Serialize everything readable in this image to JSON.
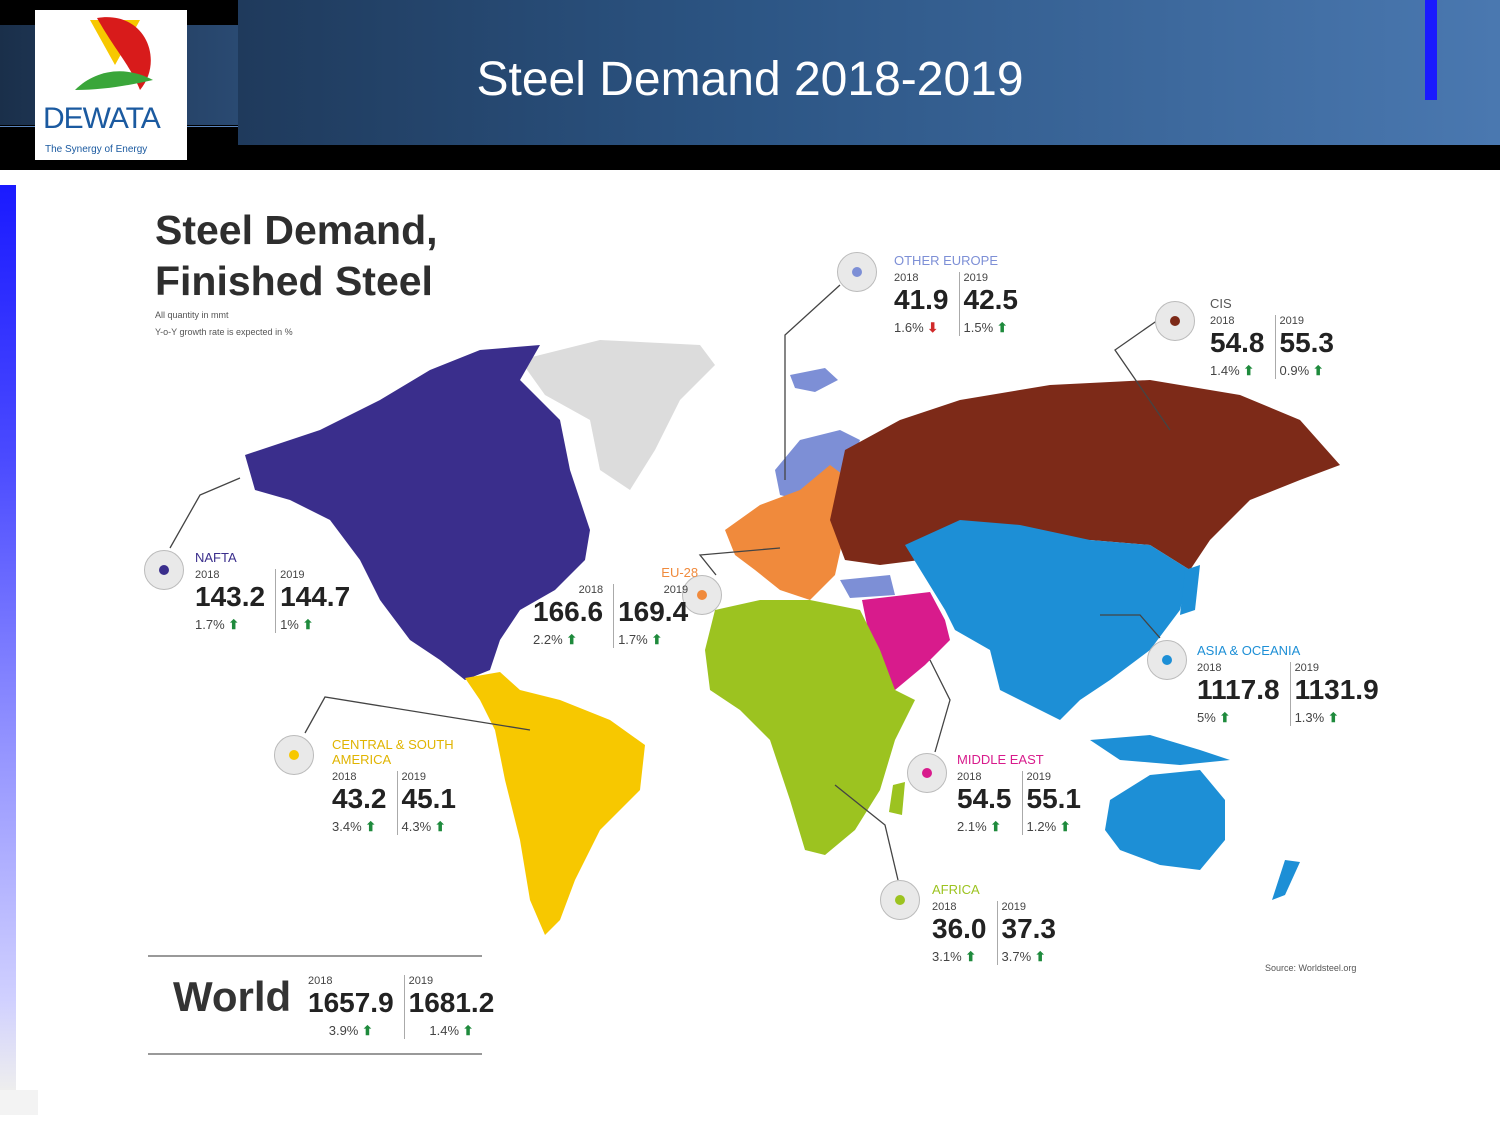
{
  "slide": {
    "title": "Steel Demand 2018-2019",
    "logo": {
      "name": "DEWATA",
      "tagline": "The Synergy of Energy"
    },
    "colors": {
      "accent": "#1a1aff",
      "header_band": "#2c5584"
    }
  },
  "infographic": {
    "title_line1": "Steel Demand,",
    "title_line2": "Finished Steel",
    "note_line1": "All quantity in mmt",
    "note_line2": "Y-o-Y growth rate is expected in %",
    "source": "Source: Worldsteel.org",
    "regions": [
      {
        "key": "nafta",
        "name": "NAFTA",
        "year1": "2018",
        "value1": "143.2",
        "pct1": "1.7%",
        "trend1": "up",
        "year2": "2019",
        "value2": "144.7",
        "pct2": "1%",
        "trend2": "up",
        "color": "#3a2e8c"
      },
      {
        "key": "eu28",
        "name": "EU-28",
        "year1": "2018",
        "value1": "166.6",
        "pct1": "2.2%",
        "trend1": "up",
        "year2": "2019",
        "value2": "169.4",
        "pct2": "1.7%",
        "trend2": "up",
        "color": "#f08a3c"
      },
      {
        "key": "other_europe",
        "name": "OTHER EUROPE",
        "year1": "2018",
        "value1": "41.9",
        "pct1": "1.6%",
        "trend1": "down",
        "year2": "2019",
        "value2": "42.5",
        "pct2": "1.5%",
        "trend2": "up",
        "color": "#7d8fd6"
      },
      {
        "key": "cis",
        "name": "CIS",
        "year1": "2018",
        "value1": "54.8",
        "pct1": "1.4%",
        "trend1": "up",
        "year2": "2019",
        "value2": "55.3",
        "pct2": "0.9%",
        "trend2": "up",
        "color": "#7d2a18"
      },
      {
        "key": "asia_oceania",
        "name": "ASIA & OCEANIA",
        "year1": "2018",
        "value1": "1117.8",
        "pct1": "5%",
        "trend1": "up",
        "year2": "2019",
        "value2": "1131.9",
        "pct2": "1.3%",
        "trend2": "up",
        "color": "#1d8fd6"
      },
      {
        "key": "central_south_america",
        "name": "CENTRAL & SOUTH AMERICA",
        "year1": "2018",
        "value1": "43.2",
        "pct1": "3.4%",
        "trend1": "up",
        "year2": "2019",
        "value2": "45.1",
        "pct2": "4.3%",
        "trend2": "up",
        "color": "#f7c800"
      },
      {
        "key": "middle_east",
        "name": "MIDDLE EAST",
        "year1": "2018",
        "value1": "54.5",
        "pct1": "2.1%",
        "trend1": "up",
        "year2": "2019",
        "value2": "55.1",
        "pct2": "1.2%",
        "trend2": "up",
        "color": "#d81b8c"
      },
      {
        "key": "africa",
        "name": "AFRICA",
        "year1": "2018",
        "value1": "36.0",
        "pct1": "3.1%",
        "trend1": "up",
        "year2": "2019",
        "value2": "37.3",
        "pct2": "3.7%",
        "trend2": "up",
        "color": "#9cc320"
      }
    ],
    "world": {
      "label": "World",
      "year1": "2018",
      "value1": "1657.9",
      "pct1": "3.9%",
      "year2": "2019",
      "value2": "1681.2",
      "pct2": "1.4%"
    }
  }
}
